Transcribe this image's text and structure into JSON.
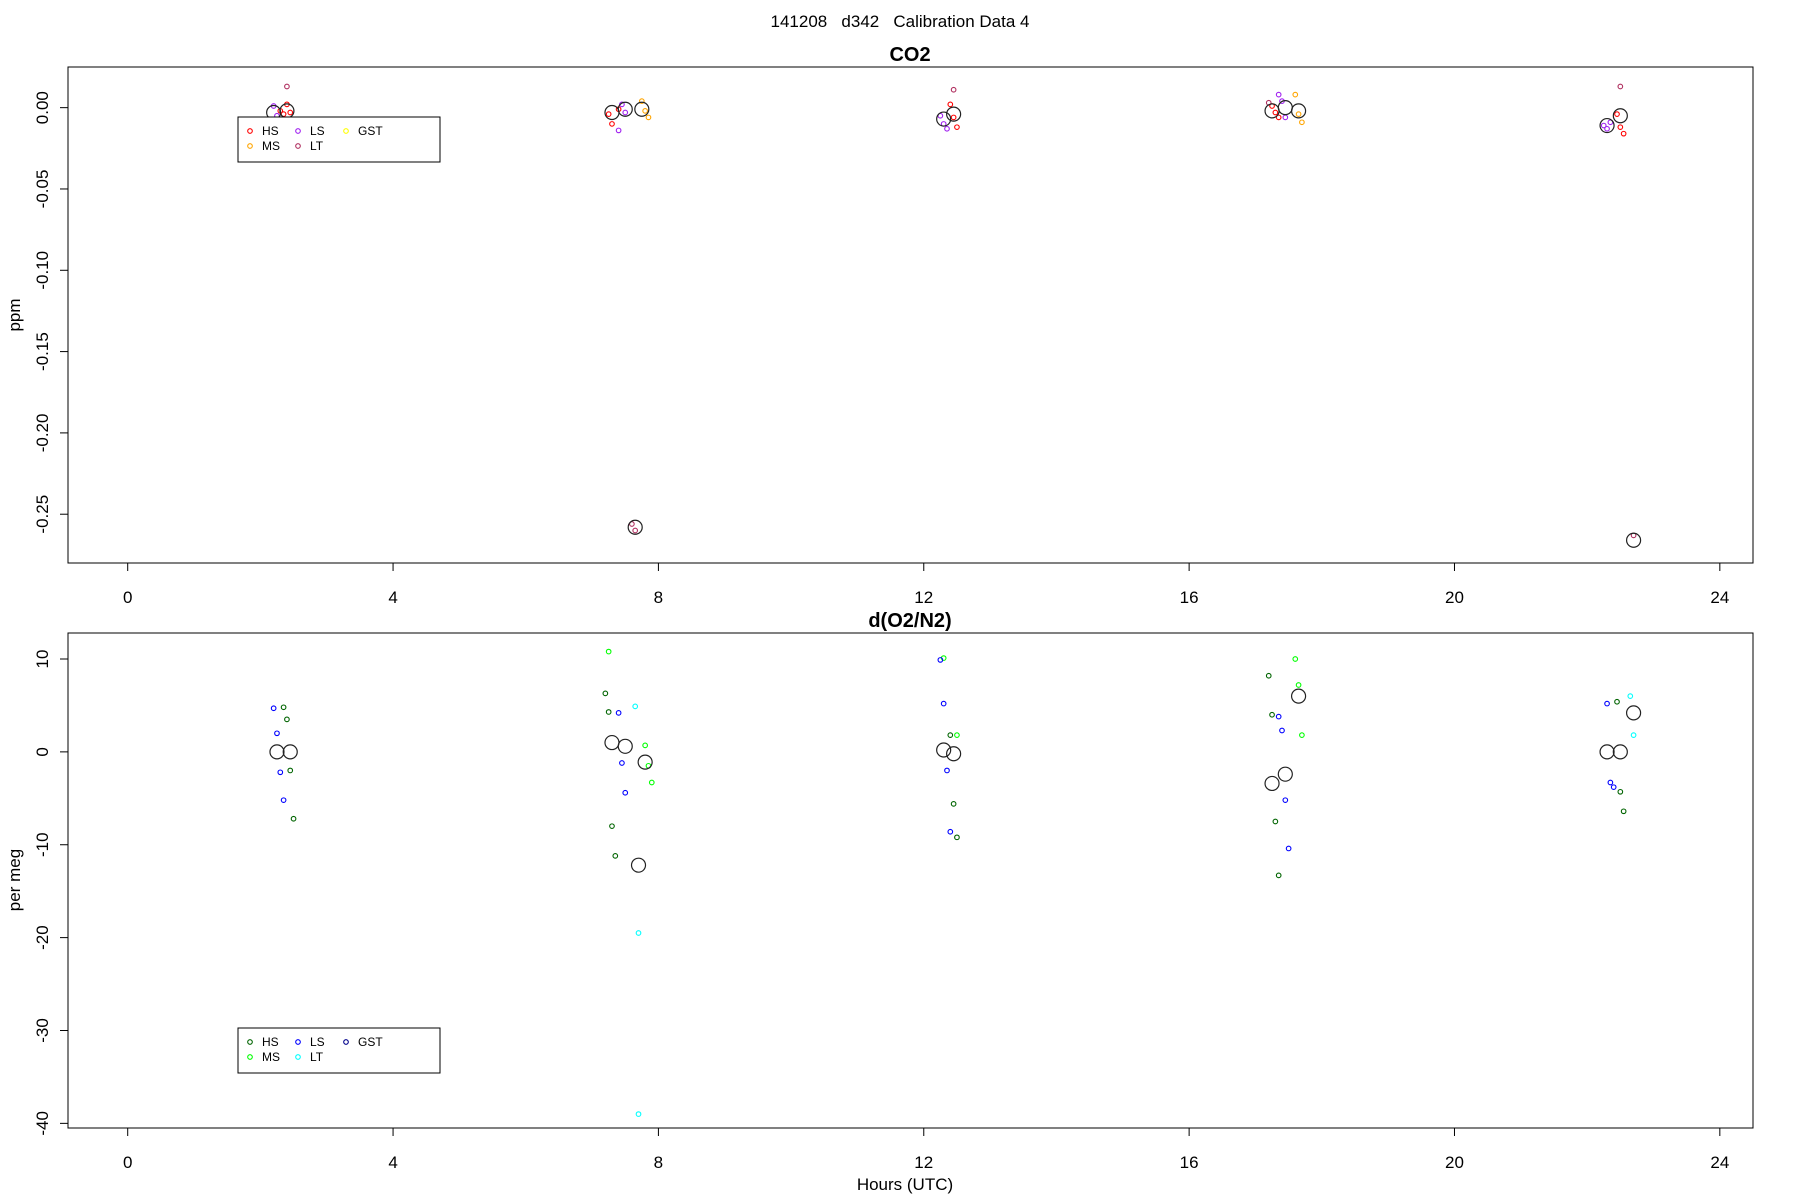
{
  "main_title": "141208   d342   Calibration Data 4",
  "colors": {
    "HS_co2": "#ff0000",
    "MS_co2": "#ffa500",
    "LS_co2": "#a020f0",
    "LT_co2": "#b03060",
    "GST_co2": "#ffff00",
    "HS_o2": "#006400",
    "MS_o2": "#00ff00",
    "LS_o2": "#0000ff",
    "LT_o2": "#00ffff",
    "GST_o2": "#00008b"
  },
  "chart_data": [
    {
      "type": "scatter",
      "title": "CO2",
      "xlabel": "",
      "ylabel": "ppm",
      "xlim": [
        -0.9,
        24.5
      ],
      "ylim": [
        -0.28,
        0.025
      ],
      "xticks": [
        "0",
        "4",
        "8",
        "12",
        "16",
        "20",
        "24"
      ],
      "yticks": [
        "0.00",
        "-0.05",
        "-0.10",
        "-0.15",
        "-0.20",
        "-0.25"
      ],
      "legend": {
        "placement": "top-left",
        "entries": [
          "HS",
          "MS",
          "LS",
          "LT",
          "GST"
        ]
      },
      "series": [
        {
          "name": "HS",
          "color": "#ff0000",
          "x": [
            2.3,
            2.35,
            2.4,
            2.45,
            7.25,
            7.3,
            7.4,
            12.4,
            12.45,
            12.5,
            17.25,
            17.3,
            17.35,
            22.45,
            22.5,
            22.55
          ],
          "y": [
            -0.002,
            -0.004,
            0.002,
            -0.003,
            -0.004,
            -0.01,
            -0.001,
            0.002,
            -0.006,
            -0.012,
            0.001,
            -0.003,
            -0.006,
            -0.004,
            -0.012,
            -0.016
          ]
        },
        {
          "name": "MS",
          "color": "#ffa500",
          "x": [
            7.75,
            7.8,
            7.85,
            17.6,
            17.65,
            17.7
          ],
          "y": [
            0.004,
            -0.002,
            -0.006,
            0.008,
            -0.004,
            -0.009
          ]
        },
        {
          "name": "LS",
          "color": "#a020f0",
          "x": [
            2.2,
            2.25,
            7.4,
            7.45,
            7.5,
            12.25,
            12.3,
            12.35,
            17.35,
            17.4,
            17.45,
            22.25,
            22.3,
            22.35
          ],
          "y": [
            0.001,
            -0.005,
            -0.014,
            0.002,
            -0.003,
            -0.005,
            -0.01,
            -0.013,
            0.008,
            0.004,
            -0.006,
            -0.011,
            -0.013,
            -0.009
          ]
        },
        {
          "name": "LT",
          "color": "#b03060",
          "x": [
            2.4,
            7.6,
            7.65,
            12.45,
            17.2,
            22.5,
            22.7
          ],
          "y": [
            0.013,
            -0.256,
            -0.26,
            0.011,
            0.003,
            0.013,
            -0.263
          ]
        }
      ],
      "means": {
        "x": [
          2.2,
          2.4,
          7.3,
          7.5,
          7.75,
          7.65,
          12.3,
          12.45,
          17.25,
          17.45,
          17.65,
          22.3,
          22.5,
          22.7
        ],
        "y": [
          -0.003,
          -0.002,
          -0.003,
          -0.001,
          -0.001,
          -0.258,
          -0.007,
          -0.004,
          -0.002,
          0.0,
          -0.002,
          -0.011,
          -0.005,
          -0.266
        ]
      }
    },
    {
      "type": "scatter",
      "title": "d(O2/N2)",
      "xlabel": "Hours (UTC)",
      "ylabel": "per meg",
      "xlim": [
        -0.9,
        24.5
      ],
      "ylim": [
        -40.5,
        12.8
      ],
      "xticks": [
        "0",
        "4",
        "8",
        "12",
        "16",
        "20",
        "24"
      ],
      "yticks": [
        "10",
        "0",
        "-10",
        "-20",
        "-30",
        "-40"
      ],
      "legend": {
        "placement": "bottom-left",
        "entries": [
          "HS",
          "MS",
          "LS",
          "LT",
          "GST"
        ]
      },
      "series": [
        {
          "name": "HS",
          "color": "#006400",
          "x": [
            2.35,
            2.4,
            2.45,
            2.5,
            7.2,
            7.25,
            7.3,
            7.35,
            12.4,
            12.45,
            12.5,
            17.2,
            17.25,
            17.3,
            17.35,
            22.45,
            22.5,
            22.55
          ],
          "y": [
            4.8,
            3.5,
            -2.0,
            -7.2,
            6.3,
            4.3,
            -8.0,
            -11.2,
            1.8,
            -5.6,
            -9.2,
            8.2,
            4.0,
            -7.5,
            -13.3,
            5.4,
            -4.3,
            -6.4
          ]
        },
        {
          "name": "MS",
          "color": "#00ff00",
          "x": [
            7.25,
            7.8,
            7.85,
            7.9,
            12.3,
            12.5,
            17.6,
            17.65,
            17.7
          ],
          "y": [
            10.8,
            0.7,
            -1.5,
            -3.3,
            10.1,
            1.8,
            10.0,
            7.2,
            1.8
          ]
        },
        {
          "name": "LS",
          "color": "#0000ff",
          "x": [
            2.2,
            2.25,
            2.3,
            2.35,
            7.4,
            7.45,
            7.5,
            12.25,
            12.3,
            12.35,
            12.4,
            17.35,
            17.4,
            17.45,
            17.5,
            22.3,
            22.35,
            22.4
          ],
          "y": [
            4.7,
            2.0,
            -2.2,
            -5.2,
            4.2,
            -1.2,
            -4.4,
            9.9,
            5.2,
            -2.0,
            -8.6,
            3.8,
            2.3,
            -5.2,
            -10.4,
            5.2,
            -3.3,
            -3.8
          ]
        },
        {
          "name": "LT",
          "color": "#00ffff",
          "x": [
            7.65,
            7.7,
            7.7,
            22.65,
            22.7
          ],
          "y": [
            4.9,
            -19.5,
            -39.0,
            6.0,
            1.8
          ]
        }
      ],
      "means": {
        "x": [
          2.25,
          2.45,
          7.3,
          7.5,
          7.8,
          7.7,
          12.3,
          12.45,
          17.25,
          17.45,
          17.65,
          22.3,
          22.5,
          22.7
        ],
        "y": [
          0.0,
          0.0,
          1.0,
          0.6,
          -1.1,
          -12.2,
          0.2,
          -0.2,
          -3.4,
          -2.4,
          6.0,
          0.0,
          0.0,
          4.2
        ]
      }
    }
  ],
  "legend_labels": [
    "HS",
    "MS",
    "LS",
    "LT",
    "GST"
  ]
}
